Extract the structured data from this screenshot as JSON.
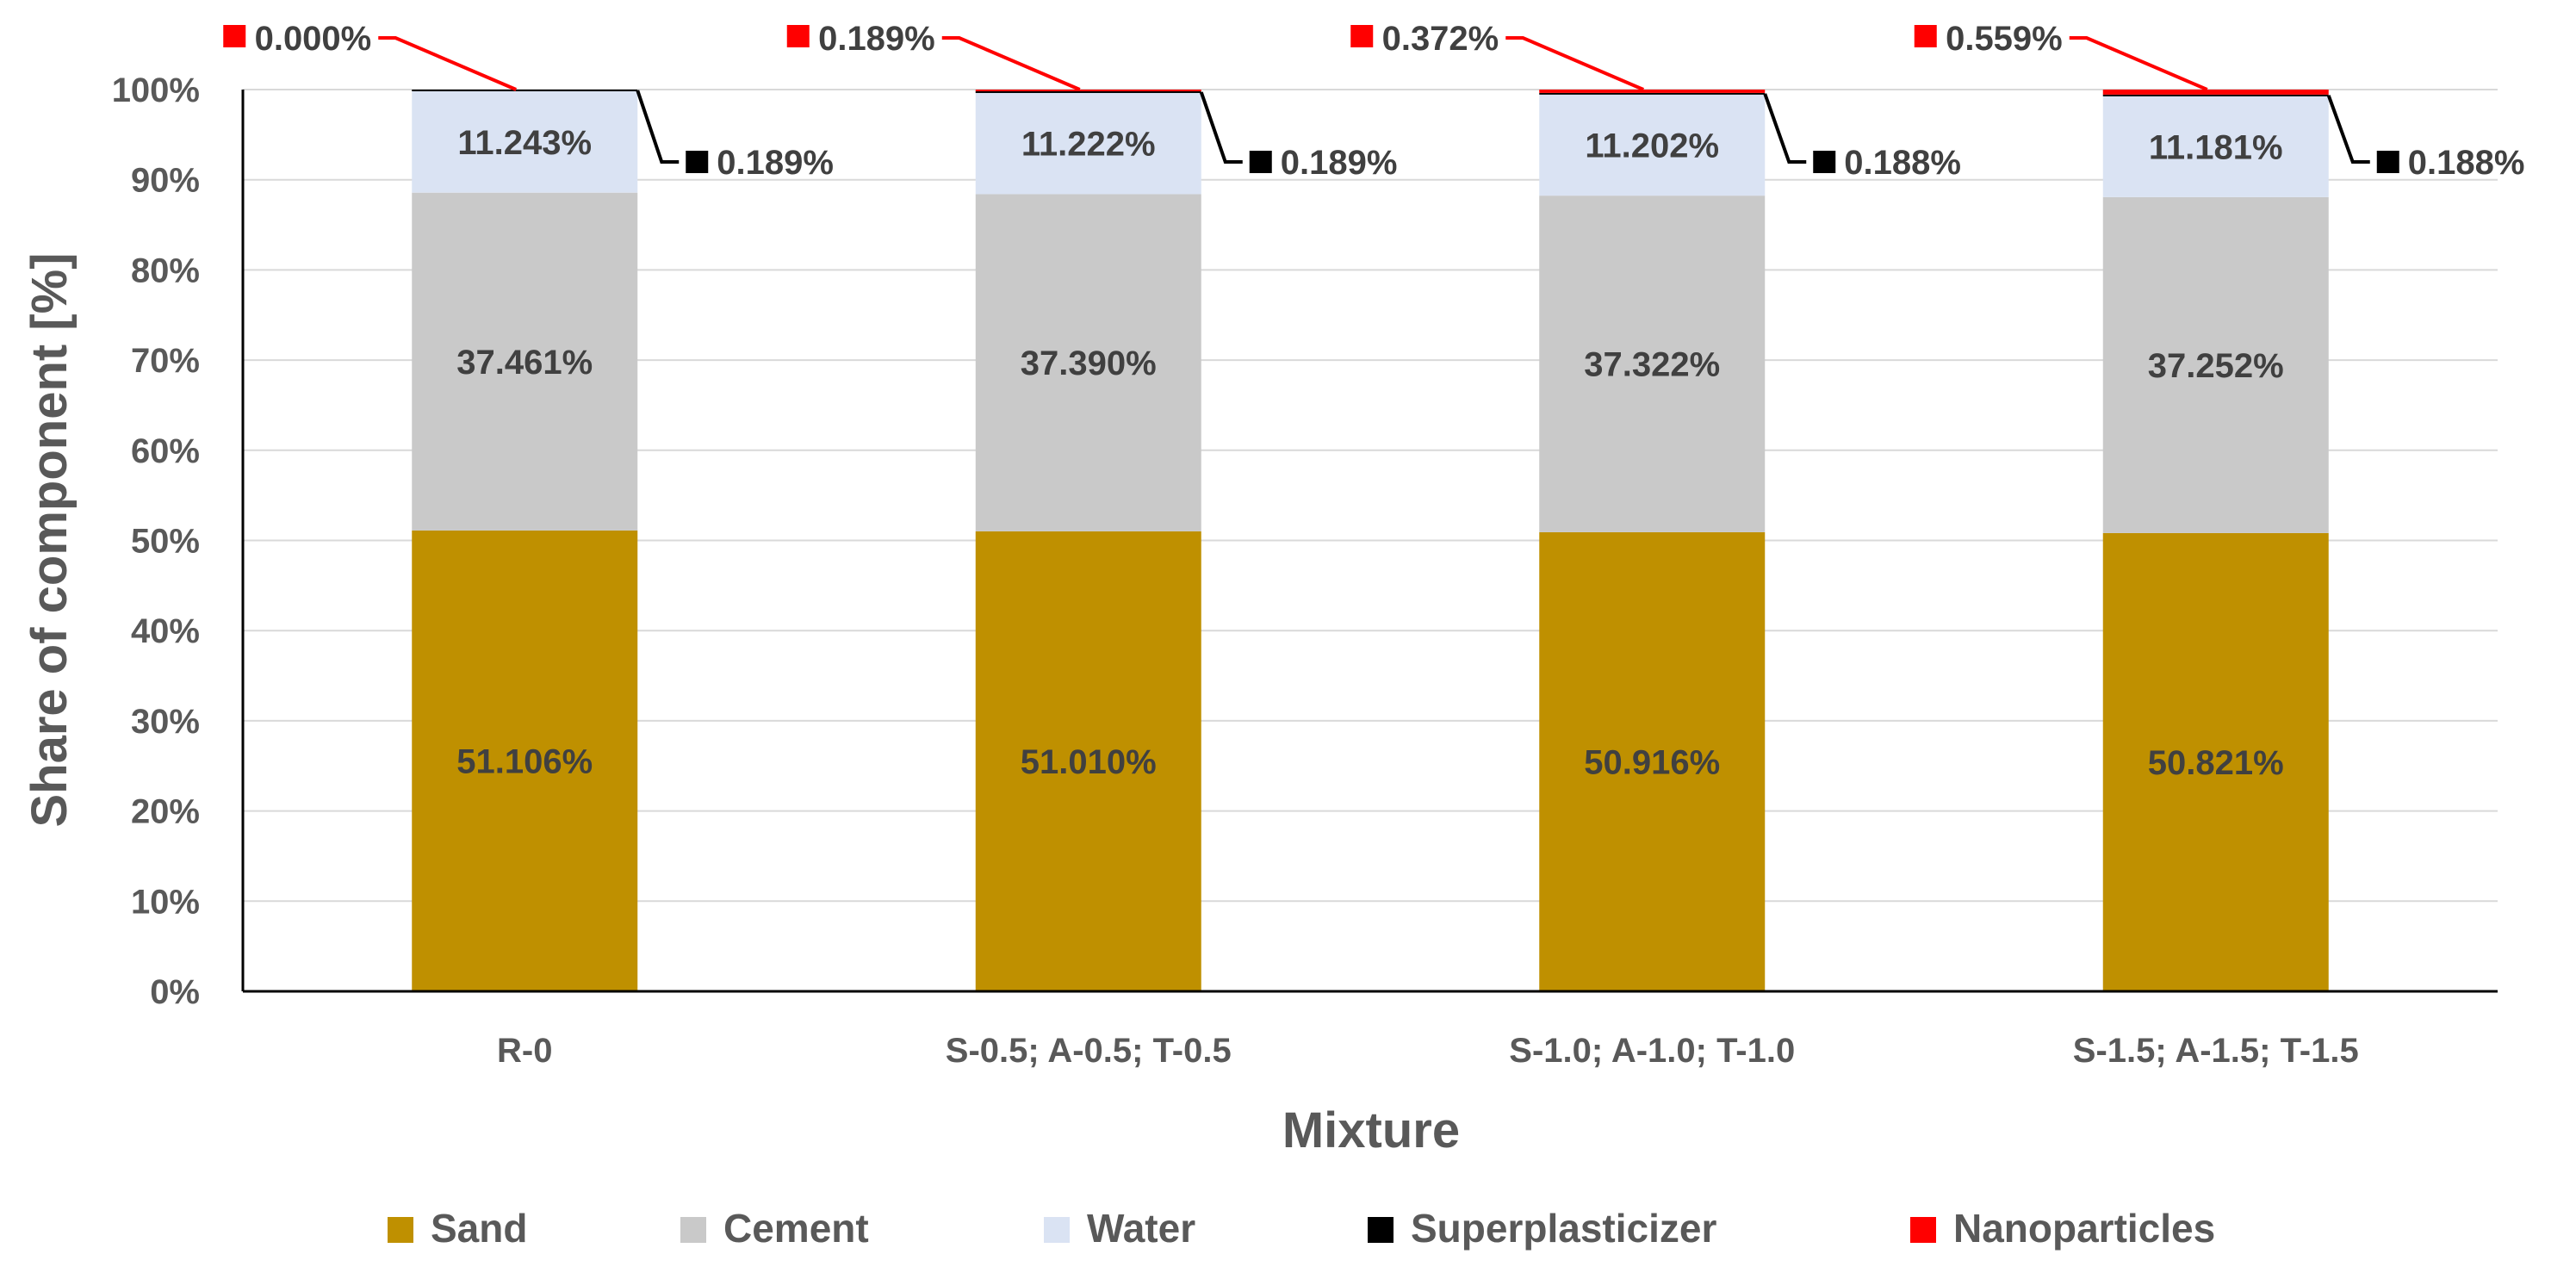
{
  "chart_data": {
    "type": "bar",
    "stacked": true,
    "percent": true,
    "categories": [
      "R-0",
      "S-0.5; A-0.5; T-0.5",
      "S-1.0; A-1.0; T-1.0",
      "S-1.5; A-1.5; T-1.5"
    ],
    "series": [
      {
        "name": "Sand",
        "color": "#bf9000",
        "values": [
          51.106,
          51.01,
          50.916,
          50.821
        ],
        "labels": [
          "51.106%",
          "51.010%",
          "50.916%",
          "50.821%"
        ]
      },
      {
        "name": "Cement",
        "color": "#c9c9c9",
        "values": [
          37.461,
          37.39,
          37.322,
          37.252
        ],
        "labels": [
          "37.461%",
          "37.390%",
          "37.322%",
          "37.252%"
        ]
      },
      {
        "name": "Water",
        "color": "#dae3f3",
        "values": [
          11.243,
          11.222,
          11.202,
          11.181
        ],
        "labels": [
          "11.243%",
          "11.222%",
          "11.202%",
          "11.181%"
        ]
      },
      {
        "name": "Superplasticizer",
        "color": "#000000",
        "values": [
          0.189,
          0.189,
          0.188,
          0.188
        ],
        "labels": [
          "0.189%",
          "0.189%",
          "0.188%",
          "0.188%"
        ]
      },
      {
        "name": "Nanoparticles",
        "color": "#ff0000",
        "values": [
          0.0,
          0.189,
          0.372,
          0.559
        ],
        "labels": [
          "0.000%",
          "0.189%",
          "0.372%",
          "0.559%"
        ]
      }
    ],
    "title": "",
    "xlabel": "Mixture",
    "ylabel": "Share of component [%]",
    "ylim": [
      0,
      100
    ],
    "yticks": [
      "0%",
      "10%",
      "20%",
      "30%",
      "40%",
      "50%",
      "60%",
      "70%",
      "80%",
      "90%",
      "100%"
    ],
    "grid": true,
    "legend_position": "bottom"
  }
}
